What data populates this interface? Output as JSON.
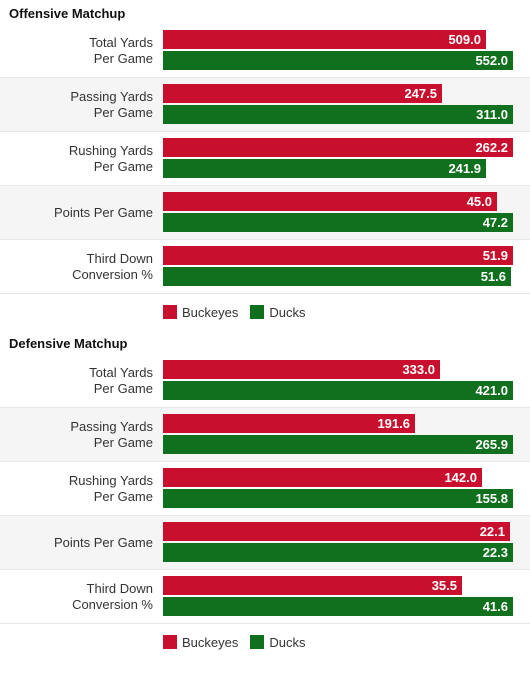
{
  "colors": {
    "buckeyes": "#c8102e",
    "ducks": "#11701d"
  },
  "chart_data": [
    {
      "type": "bar",
      "orientation": "horizontal",
      "title": "Offensive Matchup",
      "categories": [
        "Total Yards Per Game",
        "Passing Yards Per Game",
        "Rushing Yards Per Game",
        "Points Per Game",
        "Third Down Conversion %"
      ],
      "category_lines": [
        [
          "Total Yards",
          "Per Game"
        ],
        [
          "Passing Yards",
          "Per Game"
        ],
        [
          "Rushing Yards",
          "Per Game"
        ],
        [
          "Points Per Game"
        ],
        [
          "Third Down",
          "Conversion %"
        ]
      ],
      "series": [
        {
          "name": "Buckeyes",
          "values": [
            "509.0",
            "247.5",
            "262.2",
            "45.0",
            "51.9"
          ]
        },
        {
          "name": "Ducks",
          "values": [
            "552.0",
            "311.0",
            "241.9",
            "47.2",
            "51.6"
          ]
        }
      ],
      "legend_position": "bottom-left"
    },
    {
      "type": "bar",
      "orientation": "horizontal",
      "title": "Defensive Matchup",
      "categories": [
        "Total Yards Per Game",
        "Passing Yards Per Game",
        "Rushing Yards Per Game",
        "Points Per Game",
        "Third Down Conversion %"
      ],
      "category_lines": [
        [
          "Total Yards",
          "Per Game"
        ],
        [
          "Passing Yards",
          "Per Game"
        ],
        [
          "Rushing Yards",
          "Per Game"
        ],
        [
          "Points Per Game"
        ],
        [
          "Third Down",
          "Conversion %"
        ]
      ],
      "series": [
        {
          "name": "Buckeyes",
          "values": [
            "333.0",
            "191.6",
            "142.0",
            "22.1",
            "35.5"
          ]
        },
        {
          "name": "Ducks",
          "values": [
            "421.0",
            "265.9",
            "155.8",
            "22.3",
            "41.6"
          ]
        }
      ],
      "legend_position": "bottom-left"
    }
  ]
}
